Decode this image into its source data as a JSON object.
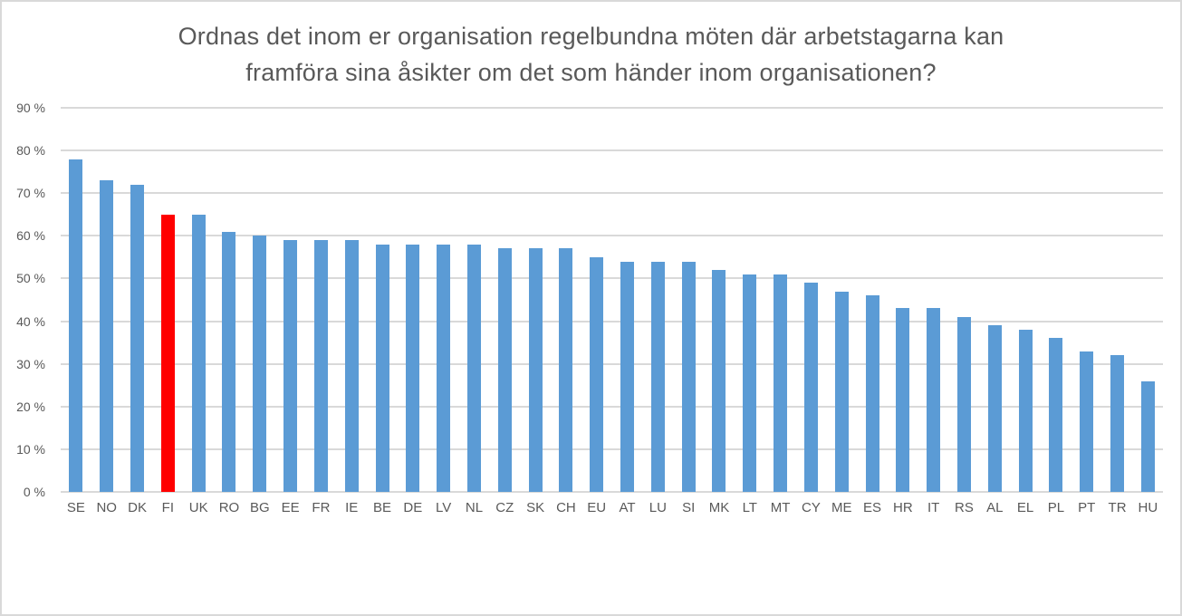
{
  "chart_data": {
    "type": "bar",
    "title_lines": [
      "Ordnas det inom er organisation regelbundna möten där arbetstagarna kan",
      "framföra sina åsikter om det som händer inom organisationen?"
    ],
    "categories": [
      "SE",
      "NO",
      "DK",
      "FI",
      "UK",
      "RO",
      "BG",
      "EE",
      "FR",
      "IE",
      "BE",
      "DE",
      "LV",
      "NL",
      "CZ",
      "SK",
      "CH",
      "EU",
      "AT",
      "LU",
      "SI",
      "MK",
      "LT",
      "MT",
      "CY",
      "ME",
      "ES",
      "HR",
      "IT",
      "RS",
      "AL",
      "EL",
      "PL",
      "PT",
      "TR",
      "HU"
    ],
    "values": [
      78,
      73,
      72,
      65,
      65,
      61,
      60,
      59,
      59,
      59,
      58,
      58,
      58,
      58,
      57,
      57,
      57,
      55,
      54,
      54,
      54,
      52,
      51,
      51,
      49,
      47,
      46,
      43,
      43,
      41,
      39,
      38,
      36,
      33,
      32,
      26
    ],
    "highlighted_category": "FI",
    "ylim": [
      0,
      90
    ],
    "ytick_step": 10,
    "ytick_labels": [
      "0 %",
      "10 %",
      "20 %",
      "30 %",
      "40 %",
      "50 %",
      "60 %",
      "70 %",
      "80 %",
      "90 %"
    ],
    "grid": "horizontal",
    "legend_position": "none",
    "bar_color": "#5B9BD5",
    "highlight_color": "#FF0000",
    "gridline_color": "#D9D9D9",
    "axis_text_color": "#595959",
    "title_color": "#595959",
    "background_color": "#FFFFFF",
    "border_color": "#D9D9D9"
  }
}
